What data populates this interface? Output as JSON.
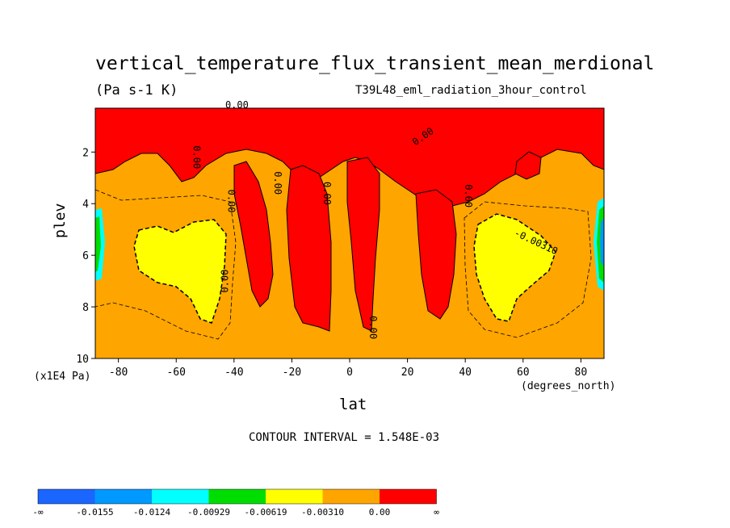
{
  "chart_data": {
    "type": "contour",
    "title": "vertical_temperature_flux_transient_mean_merdional",
    "units": "(Pa s-1 K)",
    "dataset": "T39L48_eml_radiation_3hour_control",
    "xlabel": "lat",
    "xunit": "(degrees_north)",
    "ylabel": "plev",
    "yunit": "(x1E4 Pa)",
    "xlim": [
      -88,
      88
    ],
    "ylim": [
      10,
      0.3
    ],
    "x_ticks": [
      "-80",
      "-60",
      "-40",
      "-20",
      "0",
      "20",
      "40",
      "60",
      "80"
    ],
    "y_ticks": [
      "2",
      "4",
      "6",
      "8",
      "10"
    ],
    "contour_interval_text": "CONTOUR INTERVAL = 1.548E-03",
    "contour_labels": [
      "0.00",
      "0.00",
      "0.00",
      "0.00",
      "0.00",
      "0.00",
      "0.00",
      "0.00",
      "0.00",
      "-0.00310",
      "-0.00310"
    ],
    "colorbar": {
      "colors": [
        "#1a66ff",
        "#0099ff",
        "#00ffff",
        "#00dd00",
        "#ffff00",
        "#ffa500",
        "#ff0000"
      ],
      "labels": [
        "-∞",
        "-0.0155",
        "-0.0124",
        "-0.00929",
        "-0.00619",
        "-0.00310",
        "0.00",
        "∞"
      ]
    }
  }
}
